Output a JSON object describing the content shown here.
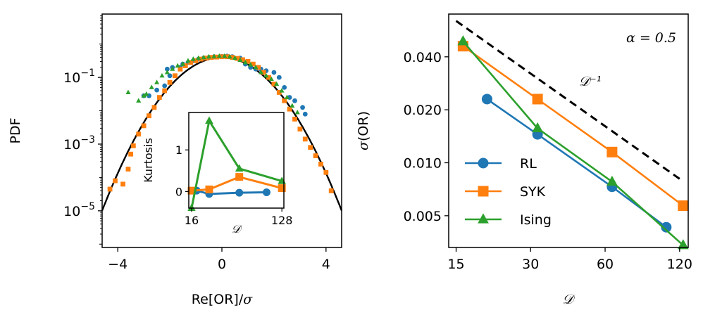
{
  "chart_data": [
    {
      "type": "scatter",
      "panel": "left",
      "xlabel_main": "Re[OR]/",
      "xlabel_symbol": "σ",
      "ylabel": "PDF",
      "xlim": [
        -4.6,
        4.6
      ],
      "ylim_log10": [
        -6.1,
        0.9
      ],
      "y_scale": "log",
      "x_ticks": [
        {
          "v": -4,
          "label": "−4"
        },
        {
          "v": 0,
          "label": "0"
        },
        {
          "v": 4,
          "label": "4"
        }
      ],
      "y_ticks": [
        {
          "e": -1,
          "base": "10",
          "exp": "−1"
        },
        {
          "e": -3,
          "base": "10",
          "exp": "−3"
        },
        {
          "e": -5,
          "base": "10",
          "exp": "−5"
        }
      ],
      "reference_curve": {
        "kind": "gaussian",
        "mean": 0,
        "sd": 1,
        "color": "#000000"
      },
      "series": [
        {
          "color": "#1f77b4",
          "marker": "circle",
          "points": [
            [
              -3.0,
              -1.55
            ],
            [
              -2.8,
              -1.55
            ],
            [
              -2.5,
              -1.38
            ],
            [
              -2.2,
              -1.25
            ],
            [
              -2.1,
              -0.75
            ],
            [
              -2.0,
              -0.95
            ],
            [
              -1.9,
              -0.7
            ],
            [
              -1.6,
              -0.7
            ],
            [
              -1.5,
              -0.6
            ],
            [
              -1.3,
              -0.55
            ],
            [
              -1.1,
              -0.5
            ],
            [
              -0.9,
              -0.45
            ],
            [
              -0.7,
              -0.42
            ],
            [
              -0.5,
              -0.4
            ],
            [
              -0.3,
              -0.38
            ],
            [
              0.0,
              -0.37
            ],
            [
              0.2,
              -0.36
            ],
            [
              0.4,
              -0.38
            ],
            [
              0.7,
              -0.42
            ],
            [
              0.9,
              -0.6
            ],
            [
              1.1,
              -0.7
            ],
            [
              1.3,
              -0.75
            ],
            [
              1.5,
              -0.75
            ],
            [
              1.7,
              -0.8
            ],
            [
              2.0,
              -0.85
            ],
            [
              2.2,
              -1.0
            ],
            [
              2.4,
              -1.3
            ],
            [
              2.6,
              -1.6
            ],
            [
              2.8,
              -1.7
            ],
            [
              3.1,
              -1.9
            ],
            [
              3.2,
              -2.1
            ]
          ]
        },
        {
          "color": "#ff7f0e",
          "marker": "square",
          "points": [
            [
              -4.3,
              -4.35
            ],
            [
              -4.1,
              -4.1
            ],
            [
              -3.8,
              -4.2
            ],
            [
              -3.6,
              -3.75
            ],
            [
              -3.5,
              -3.3
            ],
            [
              -3.4,
              -3.05
            ],
            [
              -3.2,
              -2.7
            ],
            [
              -3.0,
              -2.45
            ],
            [
              -2.8,
              -2.15
            ],
            [
              -2.6,
              -1.9
            ],
            [
              -2.4,
              -1.6
            ],
            [
              -2.2,
              -1.4
            ],
            [
              -2.0,
              -1.15
            ],
            [
              -1.8,
              -0.95
            ],
            [
              -1.6,
              -0.75
            ],
            [
              -1.4,
              -0.65
            ],
            [
              -1.2,
              -0.55
            ],
            [
              -1.0,
              -0.5
            ],
            [
              -0.8,
              -0.45
            ],
            [
              -0.6,
              -0.42
            ],
            [
              -0.4,
              -0.4
            ],
            [
              -0.2,
              -0.39
            ],
            [
              0.0,
              -0.38
            ],
            [
              0.2,
              -0.38
            ],
            [
              0.4,
              -0.4
            ],
            [
              0.6,
              -0.43
            ],
            [
              0.8,
              -0.47
            ],
            [
              1.0,
              -0.52
            ],
            [
              1.2,
              -0.6
            ],
            [
              1.4,
              -0.7
            ],
            [
              1.6,
              -0.85
            ],
            [
              1.8,
              -1.0
            ],
            [
              2.0,
              -1.2
            ],
            [
              2.2,
              -1.45
            ],
            [
              2.4,
              -1.7
            ],
            [
              2.6,
              -1.95
            ],
            [
              2.8,
              -2.25
            ],
            [
              3.0,
              -2.55
            ],
            [
              3.2,
              -2.85
            ],
            [
              3.4,
              -3.1
            ],
            [
              3.6,
              -3.35
            ],
            [
              3.8,
              -3.6
            ],
            [
              4.0,
              -3.85
            ],
            [
              4.2,
              -4.4
            ]
          ]
        },
        {
          "color": "#2ca02c",
          "marker": "triangle",
          "points": [
            [
              -3.6,
              -1.45
            ],
            [
              -3.2,
              -1.7
            ],
            [
              -3.0,
              -1.55
            ],
            [
              -2.9,
              -1.5
            ],
            [
              -2.7,
              -1.3
            ],
            [
              -2.5,
              -1.15
            ],
            [
              -2.3,
              -0.95
            ],
            [
              -2.1,
              -0.85
            ],
            [
              -1.9,
              -0.75
            ],
            [
              -1.7,
              -0.65
            ],
            [
              -1.5,
              -0.6
            ],
            [
              -1.3,
              -0.5
            ],
            [
              -1.1,
              -0.45
            ],
            [
              -0.9,
              -0.42
            ],
            [
              -0.7,
              -0.4
            ],
            [
              -0.5,
              -0.38
            ],
            [
              -0.3,
              -0.37
            ],
            [
              -0.1,
              -0.36
            ],
            [
              0.1,
              -0.36
            ],
            [
              0.3,
              -0.38
            ],
            [
              0.5,
              -0.42
            ],
            [
              0.7,
              -0.48
            ],
            [
              0.9,
              -0.55
            ],
            [
              1.1,
              -0.62
            ],
            [
              1.3,
              -0.7
            ],
            [
              1.5,
              -0.85
            ],
            [
              1.7,
              -0.95
            ],
            [
              1.9,
              -1.05
            ],
            [
              2.1,
              -1.2
            ],
            [
              2.3,
              -1.4
            ],
            [
              2.5,
              -1.6
            ],
            [
              2.7,
              -1.85
            ],
            [
              2.9,
              -2.05
            ]
          ]
        }
      ],
      "inset": {
        "type": "line",
        "ylabel": "Kurtosis",
        "xlabel_symbol": "𝒟",
        "x_scale": "log2",
        "xlim": [
          15,
          134
        ],
        "ylim": [
          -0.4,
          1.9
        ],
        "x_ticks": [
          {
            "v": 16,
            "label": "16"
          },
          {
            "v": 128,
            "label": "128"
          }
        ],
        "y_ticks": [
          {
            "v": 0,
            "label": "0"
          },
          {
            "v": 1,
            "label": "1"
          }
        ],
        "series": [
          {
            "color": "#1f77b4",
            "marker": "circle",
            "points": [
              [
                18,
                0.02
              ],
              [
                24,
                -0.06
              ],
              [
                48,
                -0.03
              ],
              [
                90,
                -0.02
              ]
            ]
          },
          {
            "color": "#ff7f0e",
            "marker": "square",
            "points": [
              [
                16,
                0.02
              ],
              [
                24,
                0.05
              ],
              [
                48,
                0.35
              ],
              [
                128,
                0.08
              ]
            ]
          },
          {
            "color": "#2ca02c",
            "marker": "triangle",
            "points": [
              [
                16,
                -0.4
              ],
              [
                24,
                1.7
              ],
              [
                48,
                0.55
              ],
              [
                128,
                0.25
              ]
            ]
          }
        ]
      }
    },
    {
      "type": "line",
      "panel": "right",
      "ylabel_main": "(OR)",
      "ylabel_symbol": "σ",
      "xlabel_symbol": "𝒟",
      "x_scale": "log",
      "y_scale": "log",
      "xlim": [
        14,
        130
      ],
      "ylim": [
        0.0033,
        0.07
      ],
      "x_ticks": [
        {
          "v": 15,
          "label": "15"
        },
        {
          "v": 30,
          "label": "30"
        },
        {
          "v": 60,
          "label": "60"
        },
        {
          "v": 120,
          "label": "120"
        }
      ],
      "y_ticks": [
        {
          "v": 0.005,
          "label": "0.005"
        },
        {
          "v": 0.01,
          "label": "0.010"
        },
        {
          "v": 0.02,
          "label": "0.020"
        },
        {
          "v": 0.04,
          "label": "0.040"
        }
      ],
      "annotation_alpha": "α = 0.5",
      "reference_line": {
        "label": "𝒟⁻¹",
        "style": "dashed",
        "color": "#000000",
        "points": [
          [
            15,
            0.064
          ],
          [
            120,
            0.0081
          ]
        ]
      },
      "legend_position": "lower-left",
      "series": [
        {
          "name": "RL",
          "color": "#1f77b4",
          "marker": "circle",
          "points": [
            [
              20,
              0.023
            ],
            [
              32,
              0.0145
            ],
            [
              64,
              0.0073
            ],
            [
              106,
              0.0043
            ]
          ]
        },
        {
          "name": "SYK",
          "color": "#ff7f0e",
          "marker": "square",
          "points": [
            [
              16,
              0.046
            ],
            [
              32,
              0.023
            ],
            [
              64,
              0.0115
            ],
            [
              124,
              0.0057
            ]
          ]
        },
        {
          "name": "Ising",
          "color": "#2ca02c",
          "marker": "triangle",
          "points": [
            [
              16,
              0.049
            ],
            [
              32,
              0.0157
            ],
            [
              64,
              0.0078
            ],
            [
              124,
              0.0034
            ]
          ]
        }
      ]
    }
  ]
}
